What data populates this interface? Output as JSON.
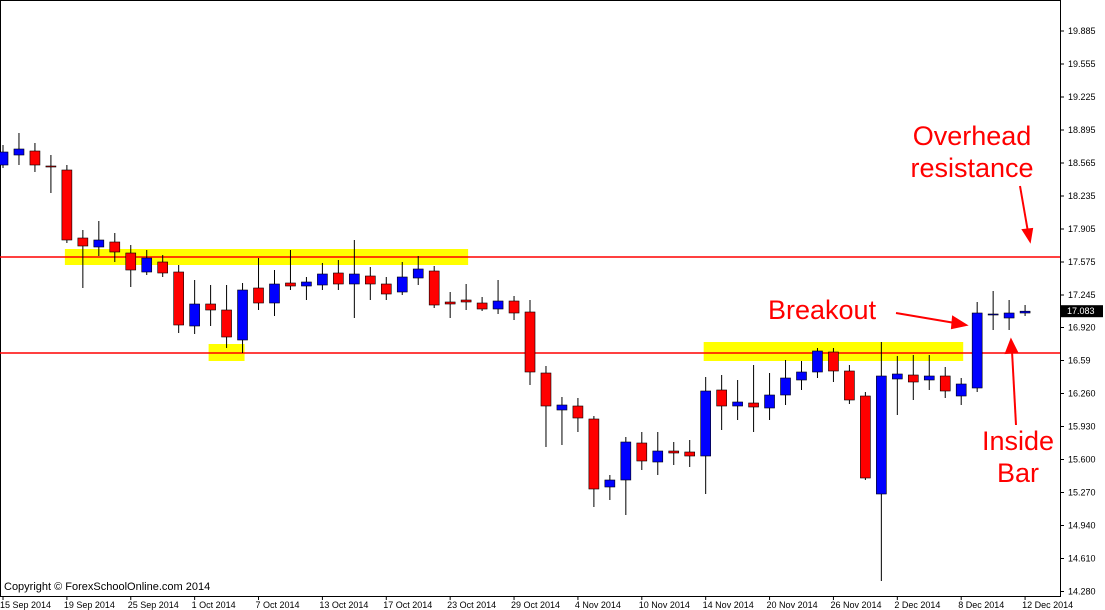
{
  "chart_data": {
    "type": "candlestick",
    "categories": [
      "15 Sep 2014",
      null,
      null,
      null,
      "19 Sep 2014",
      null,
      null,
      null,
      "25 Sep 2014",
      null,
      null,
      null,
      "1 Oct 2014",
      null,
      null,
      null,
      "7 Oct 2014",
      null,
      null,
      null,
      "13 Oct 2014",
      null,
      null,
      null,
      "17 Oct 2014",
      null,
      null,
      null,
      "23 Oct 2014",
      null,
      null,
      null,
      "29 Oct 2014",
      null,
      null,
      null,
      "4 Nov 2014",
      null,
      null,
      null,
      "10 Nov 2014",
      null,
      null,
      null,
      "14 Nov 2014",
      null,
      null,
      null,
      "20 Nov 2014",
      null,
      null,
      null,
      "26 Nov 2014",
      null,
      null,
      null,
      "2 Dec 2014",
      null,
      null,
      null,
      "8 Dec 2014",
      null,
      null,
      null,
      "12 Dec 2014"
    ],
    "open": [
      18.545,
      18.645,
      18.685,
      18.535,
      18.495,
      17.815,
      17.725,
      17.775,
      17.665,
      17.475,
      17.575,
      17.475,
      16.935,
      17.155,
      17.095,
      16.795,
      17.315,
      17.165,
      17.365,
      17.335,
      17.345,
      17.465,
      17.355,
      17.435,
      17.355,
      17.275,
      17.415,
      17.485,
      17.175,
      17.195,
      17.165,
      17.105,
      17.185,
      17.075,
      16.465,
      16.095,
      16.135,
      16.005,
      15.325,
      15.395,
      15.765,
      15.575,
      15.685,
      15.675,
      15.635,
      16.295,
      16.135,
      16.165,
      16.115,
      16.245,
      16.395,
      16.475,
      16.675,
      16.485,
      16.235,
      15.255,
      16.405,
      16.445,
      16.395,
      16.435,
      16.235,
      16.315,
      17.045,
      17.015,
      17.065
    ],
    "high": [
      18.745,
      18.865,
      18.765,
      18.645,
      18.545,
      17.895,
      17.985,
      17.865,
      17.745,
      17.695,
      17.645,
      17.545,
      17.395,
      17.345,
      17.345,
      17.365,
      17.615,
      17.495,
      17.695,
      17.425,
      17.565,
      17.595,
      17.795,
      17.525,
      17.425,
      17.575,
      17.635,
      17.535,
      17.275,
      17.355,
      17.225,
      17.395,
      17.235,
      17.195,
      16.535,
      16.225,
      16.215,
      16.035,
      15.445,
      15.825,
      15.875,
      15.875,
      15.775,
      15.795,
      16.425,
      16.445,
      16.395,
      16.545,
      16.465,
      16.595,
      16.585,
      16.715,
      16.715,
      16.545,
      16.275,
      16.775,
      16.635,
      16.645,
      16.645,
      16.525,
      16.415,
      17.175,
      17.285,
      17.195,
      17.145
    ],
    "low": [
      18.515,
      18.545,
      18.475,
      18.265,
      17.765,
      17.315,
      17.635,
      17.575,
      17.325,
      17.445,
      17.425,
      16.865,
      16.855,
      16.935,
      16.715,
      16.665,
      17.095,
      17.035,
      17.295,
      17.195,
      17.295,
      17.295,
      17.015,
      17.195,
      17.195,
      17.245,
      17.345,
      17.115,
      17.015,
      17.095,
      17.085,
      17.055,
      16.995,
      16.345,
      15.725,
      15.745,
      15.875,
      15.125,
      15.195,
      15.045,
      15.495,
      15.445,
      15.545,
      15.525,
      15.255,
      15.895,
      15.995,
      15.875,
      15.995,
      16.145,
      16.295,
      16.415,
      16.375,
      16.155,
      15.395,
      14.385,
      16.045,
      16.195,
      16.295,
      16.215,
      16.145,
      16.275,
      16.895,
      16.895,
      17.035
    ],
    "close": [
      18.675,
      18.705,
      18.545,
      18.525,
      17.795,
      17.735,
      17.795,
      17.675,
      17.495,
      17.615,
      17.465,
      16.945,
      17.155,
      17.095,
      16.825,
      17.295,
      17.165,
      17.355,
      17.335,
      17.375,
      17.455,
      17.355,
      17.455,
      17.355,
      17.255,
      17.425,
      17.505,
      17.145,
      17.155,
      17.175,
      17.105,
      17.185,
      17.065,
      16.475,
      16.135,
      16.145,
      16.015,
      15.305,
      15.395,
      15.775,
      15.585,
      15.685,
      15.665,
      15.635,
      16.285,
      16.135,
      16.175,
      16.125,
      16.245,
      16.415,
      16.475,
      16.685,
      16.485,
      16.195,
      15.415,
      16.435,
      16.455,
      16.375,
      16.435,
      16.285,
      16.355,
      17.065,
      17.055,
      17.065,
      17.083
    ],
    "up_color": "#0000ff",
    "down_color": "#ff0000",
    "ylim": [
      14.225,
      20.195
    ],
    "yticks": [
      19.885,
      19.555,
      19.225,
      18.895,
      18.565,
      18.235,
      17.905,
      17.575,
      17.245,
      {
        "value": 16.92,
        "label": "16.920"
      },
      16.59,
      {
        "value": 16.26,
        "label": "16.260"
      },
      {
        "value": 15.93,
        "label": "15.930"
      },
      {
        "value": 15.6,
        "label": "15.600"
      },
      {
        "value": 15.27,
        "label": "15.270"
      },
      {
        "value": 14.94,
        "label": "14.940"
      },
      {
        "value": 14.61,
        "label": "14.610"
      },
      {
        "value": 14.28,
        "label": "14.280"
      }
    ],
    "hlines": [
      {
        "value": 17.625,
        "color": "#ff0000"
      },
      {
        "value": 16.665,
        "color": "#ff0000"
      }
    ],
    "zones": [
      {
        "start": 4,
        "end": 29,
        "ymin": 17.545,
        "ymax": 17.705,
        "color": "#ffff00"
      },
      {
        "start": 13,
        "end": 15,
        "ymin": 16.585,
        "ymax": 16.755,
        "color": "#ffff00"
      },
      {
        "start": 44,
        "end": 60,
        "ymin": 16.585,
        "ymax": 16.775,
        "color": "#ffff00"
      }
    ],
    "annotations": {
      "resistance": [
        "Overhead",
        "resistance"
      ],
      "breakout": "Breakout",
      "inside": [
        "Inside",
        "Bar"
      ]
    },
    "copyright": "Copyright © ForexSchoolOnline.com 2014"
  }
}
